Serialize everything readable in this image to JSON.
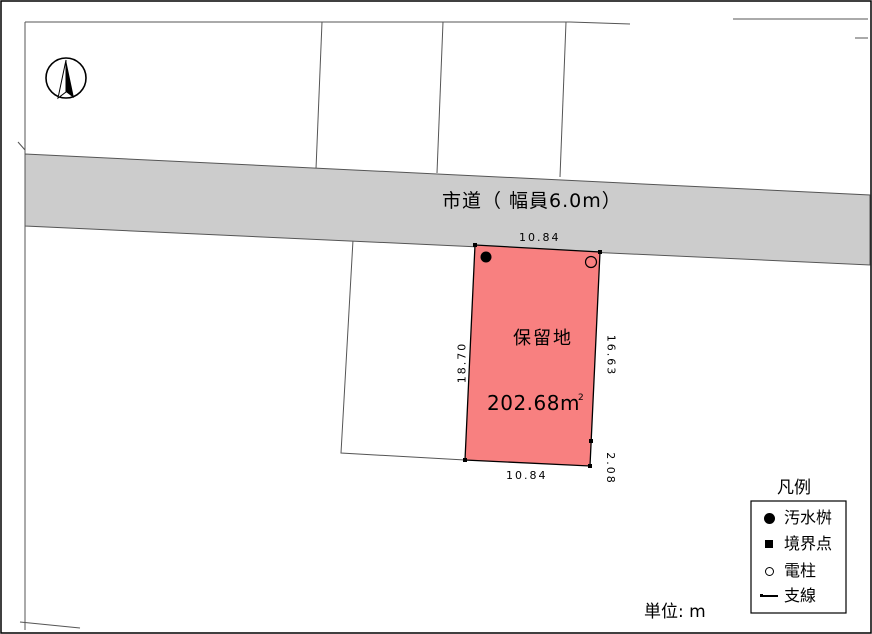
{
  "map": {
    "road_label": "市道（ 幅員6.0m）",
    "lot": {
      "name": "保留地",
      "area_value": "202.68m",
      "area_unit_sup": "2",
      "fill": "#f88080"
    },
    "dimensions": {
      "top": "10.84",
      "bottom": "10.84",
      "left": "18.70",
      "right": "16.63",
      "short": "2.08"
    },
    "unit": "単位: m",
    "road_fill": "#cccccc",
    "north_arrow_icon": "north-arrow-icon"
  },
  "legend": {
    "title": "凡例",
    "items": [
      {
        "icon": "filled-circle-icon",
        "label": "汚水桝"
      },
      {
        "icon": "filled-square-icon",
        "label": "境界点"
      },
      {
        "icon": "hollow-circle-icon",
        "label": "電柱"
      },
      {
        "icon": "line-icon",
        "label": "支線"
      }
    ]
  }
}
